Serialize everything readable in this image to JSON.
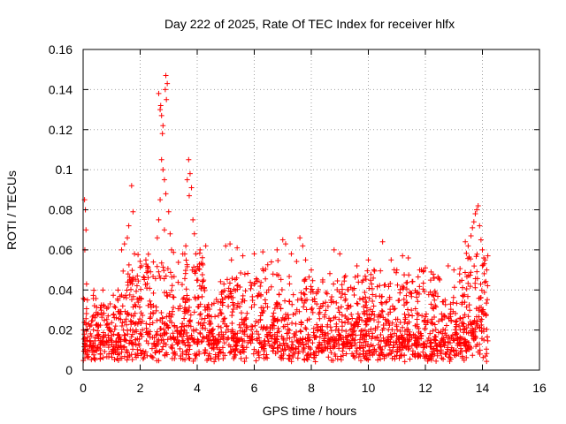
{
  "chart_data": {
    "type": "scatter",
    "title": "Day 222 of 2025, Rate Of TEC Index for receiver hlfx",
    "xlabel": "GPS time / hours",
    "ylabel": "ROTI / TECUs",
    "xlim": [
      0,
      16
    ],
    "ylim": [
      0,
      0.16
    ],
    "x_ticks": [
      "0",
      "2",
      "4",
      "6",
      "8",
      "10",
      "12",
      "14",
      "16"
    ],
    "y_ticks": [
      "0",
      "0.02",
      "0.04",
      "0.06",
      "0.08",
      "0.1",
      "0.12",
      "0.14",
      "0.16"
    ],
    "grid": true,
    "marker": "+",
    "color": "#ff0000",
    "data_x_range": [
      0,
      14.2
    ],
    "series": [
      {
        "name": "ROTI",
        "points": [
          [
            0.05,
            0.085
          ],
          [
            0.08,
            0.08
          ],
          [
            0.1,
            0.07
          ],
          [
            0.06,
            0.06
          ],
          [
            0.12,
            0.043
          ],
          [
            0.15,
            0.035
          ],
          [
            1.7,
            0.092
          ],
          [
            1.75,
            0.079
          ],
          [
            1.6,
            0.072
          ],
          [
            1.55,
            0.066
          ],
          [
            1.35,
            0.06
          ],
          [
            1.45,
            0.063
          ],
          [
            1.8,
            0.058
          ],
          [
            1.9,
            0.047
          ],
          [
            2.05,
            0.052
          ],
          [
            2.2,
            0.055
          ],
          [
            2.65,
            0.138
          ],
          [
            2.7,
            0.13
          ],
          [
            2.75,
            0.127
          ],
          [
            2.8,
            0.122
          ],
          [
            2.72,
            0.132
          ],
          [
            2.78,
            0.118
          ],
          [
            2.9,
            0.147
          ],
          [
            2.95,
            0.143
          ],
          [
            2.88,
            0.14
          ],
          [
            2.92,
            0.135
          ],
          [
            2.75,
            0.105
          ],
          [
            2.8,
            0.1
          ],
          [
            2.85,
            0.095
          ],
          [
            2.7,
            0.085
          ],
          [
            2.9,
            0.088
          ],
          [
            2.65,
            0.075
          ],
          [
            2.85,
            0.07
          ],
          [
            3.0,
            0.079
          ],
          [
            3.05,
            0.068
          ],
          [
            2.6,
            0.066
          ],
          [
            3.1,
            0.06
          ],
          [
            3.7,
            0.105
          ],
          [
            3.75,
            0.098
          ],
          [
            3.8,
            0.091
          ],
          [
            3.65,
            0.095
          ],
          [
            3.72,
            0.087
          ],
          [
            3.85,
            0.075
          ],
          [
            3.9,
            0.068
          ],
          [
            3.6,
            0.062
          ],
          [
            3.95,
            0.058
          ],
          [
            4.1,
            0.06
          ],
          [
            4.3,
            0.062
          ],
          [
            5.0,
            0.062
          ],
          [
            5.15,
            0.063
          ],
          [
            5.4,
            0.061
          ],
          [
            5.6,
            0.057
          ],
          [
            5.2,
            0.055
          ],
          [
            6.0,
            0.058
          ],
          [
            6.3,
            0.059
          ],
          [
            6.6,
            0.054
          ],
          [
            7.0,
            0.065
          ],
          [
            7.1,
            0.063
          ],
          [
            7.3,
            0.058
          ],
          [
            6.8,
            0.06
          ],
          [
            7.6,
            0.066
          ],
          [
            7.7,
            0.062
          ],
          [
            7.8,
            0.055
          ],
          [
            8.0,
            0.05
          ],
          [
            8.4,
            0.045
          ],
          [
            8.8,
            0.06
          ],
          [
            9.0,
            0.058
          ],
          [
            9.2,
            0.047
          ],
          [
            9.6,
            0.052
          ],
          [
            10.0,
            0.055
          ],
          [
            10.2,
            0.05
          ],
          [
            10.5,
            0.064
          ],
          [
            10.8,
            0.055
          ],
          [
            11.0,
            0.05
          ],
          [
            11.2,
            0.057
          ],
          [
            11.4,
            0.056
          ],
          [
            11.8,
            0.05
          ],
          [
            12.0,
            0.051
          ],
          [
            12.2,
            0.049
          ],
          [
            12.5,
            0.045
          ],
          [
            12.8,
            0.052
          ],
          [
            13.0,
            0.05
          ],
          [
            13.2,
            0.048
          ],
          [
            13.4,
            0.064
          ],
          [
            13.5,
            0.062
          ],
          [
            13.6,
            0.067
          ],
          [
            13.65,
            0.071
          ],
          [
            13.7,
            0.074
          ],
          [
            13.75,
            0.078
          ],
          [
            13.8,
            0.08
          ],
          [
            13.85,
            0.082
          ],
          [
            13.9,
            0.072
          ],
          [
            13.95,
            0.065
          ],
          [
            14.0,
            0.06
          ],
          [
            14.05,
            0.056
          ],
          [
            14.1,
            0.055
          ],
          [
            14.15,
            0.05
          ]
        ]
      }
    ]
  }
}
